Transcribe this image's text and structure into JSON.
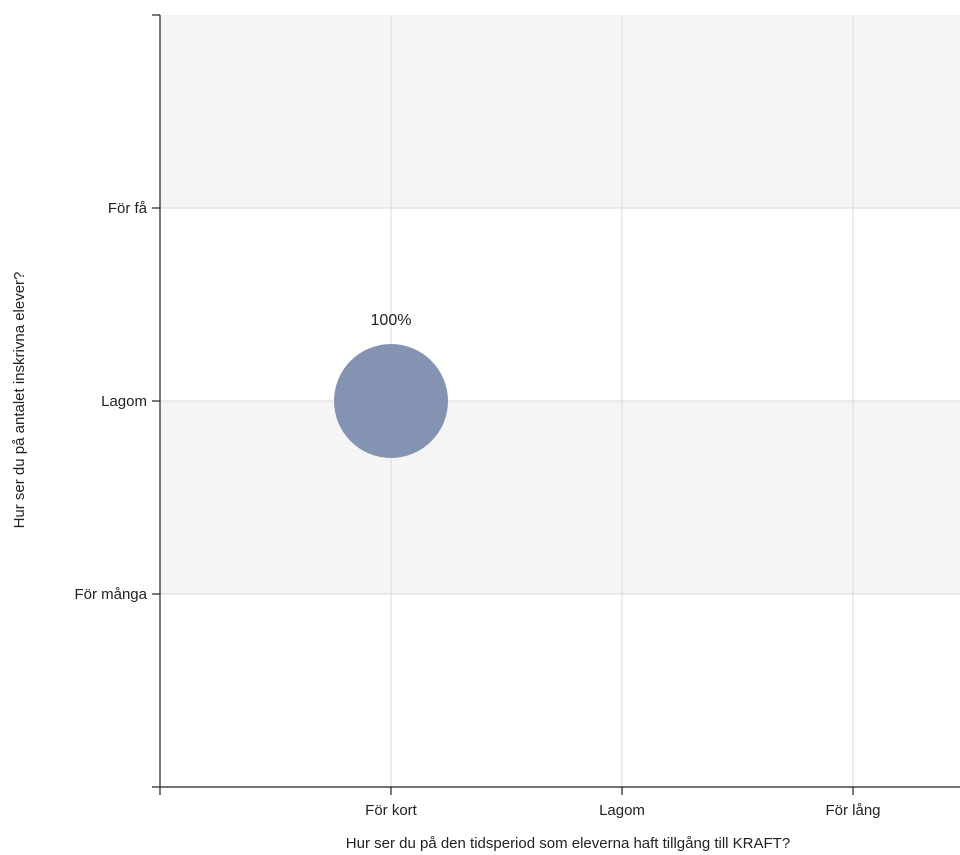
{
  "chart_data": {
    "type": "scatter",
    "xlabel": "Hur ser du på den tidsperiod som eleverna haft tillgång till KRAFT?",
    "ylabel": "Hur ser du på antalet inskrivna elever?",
    "x_categories": [
      "För kort",
      "Lagom",
      "För lång"
    ],
    "y_categories": [
      "För få",
      "Lagom",
      "För många"
    ],
    "points": [
      {
        "x": "För kort",
        "y": "Lagom",
        "value": 100,
        "label": "100%"
      }
    ],
    "grid": true,
    "colors": {
      "bubble": "#8593b3",
      "band": "#f5f5f5",
      "grid": "#d9d9d9",
      "axis": "#222222"
    }
  }
}
